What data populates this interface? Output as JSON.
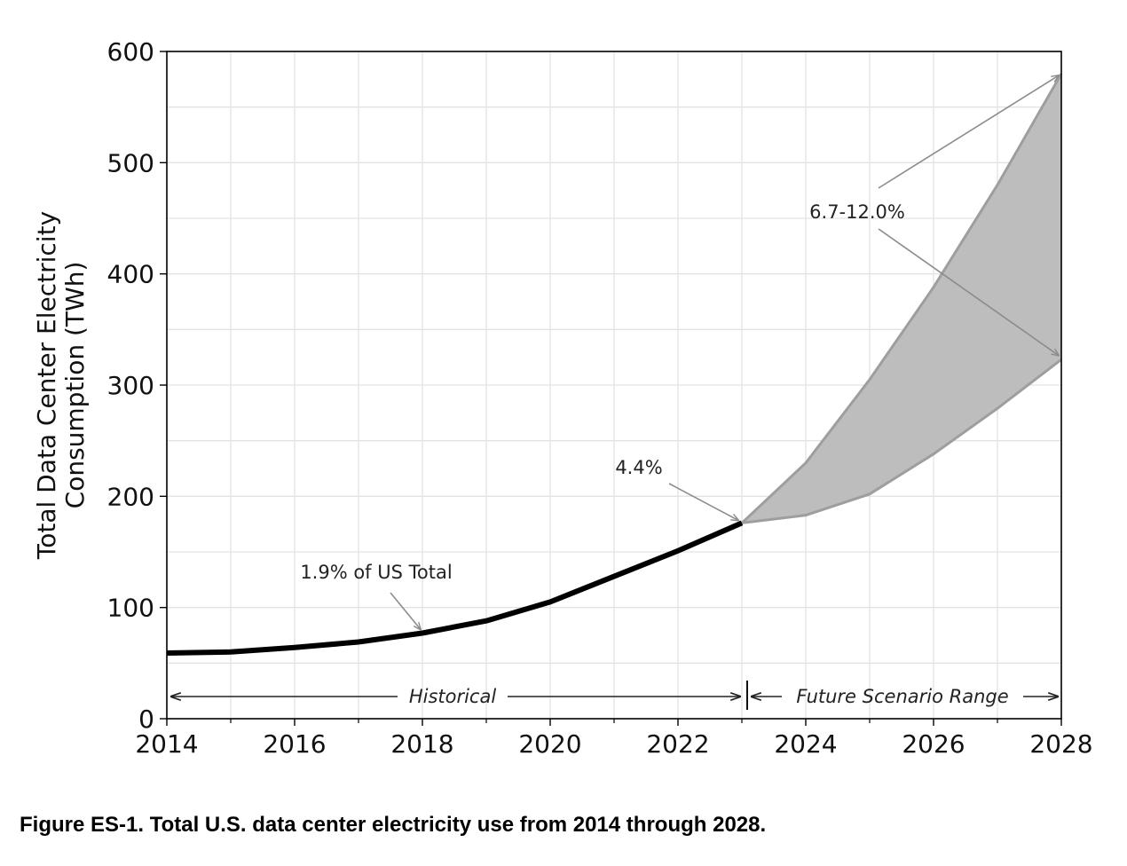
{
  "chart_data": {
    "type": "line",
    "title": "",
    "xlabel": "",
    "ylabel": "Total Data Center Electricity\nConsumption (TWh)",
    "xlim": [
      2014,
      2028
    ],
    "ylim": [
      0,
      600
    ],
    "x_ticks": [
      2014,
      2016,
      2018,
      2020,
      2022,
      2024,
      2026,
      2028
    ],
    "y_ticks": [
      0,
      100,
      200,
      300,
      400,
      500,
      600
    ],
    "grid": true,
    "legend": "none",
    "series": [
      {
        "x": [
          2014,
          2015,
          2016,
          2017,
          2018,
          2019,
          2020,
          2021,
          2022,
          2023
        ],
        "values": [
          59,
          60,
          64,
          69,
          77,
          88,
          105,
          128,
          151,
          176
        ]
      }
    ],
    "range_band": {
      "x": [
        2023,
        2024,
        2025,
        2026,
        2027,
        2028
      ],
      "upper": [
        176,
        230,
        305,
        388,
        480,
        580
      ],
      "lower": [
        176,
        183,
        202,
        238,
        279,
        323
      ]
    },
    "annotations": [
      {
        "text": "1.9% of US Total",
        "target": [
          2018,
          77
        ]
      },
      {
        "text": "4.4%",
        "target": [
          2023,
          176
        ]
      },
      {
        "text": "6.7-12.0%",
        "targets": [
          [
            2028,
            580
          ],
          [
            2028,
            325
          ]
        ]
      }
    ],
    "regions": [
      {
        "label": "Historical",
        "from": 2014,
        "to": 2023
      },
      {
        "label": "Future Scenario Range",
        "from": 2023,
        "to": 2028
      }
    ],
    "colors": {
      "line": "#000000",
      "band_fill": "#bdbdbd",
      "band_edge": "#9e9e9e",
      "grid": "#e3e3e3",
      "arrow": "#8c8c8c"
    }
  },
  "caption": "Figure ES-1. Total U.S. data center electricity use from 2014 through 2028."
}
